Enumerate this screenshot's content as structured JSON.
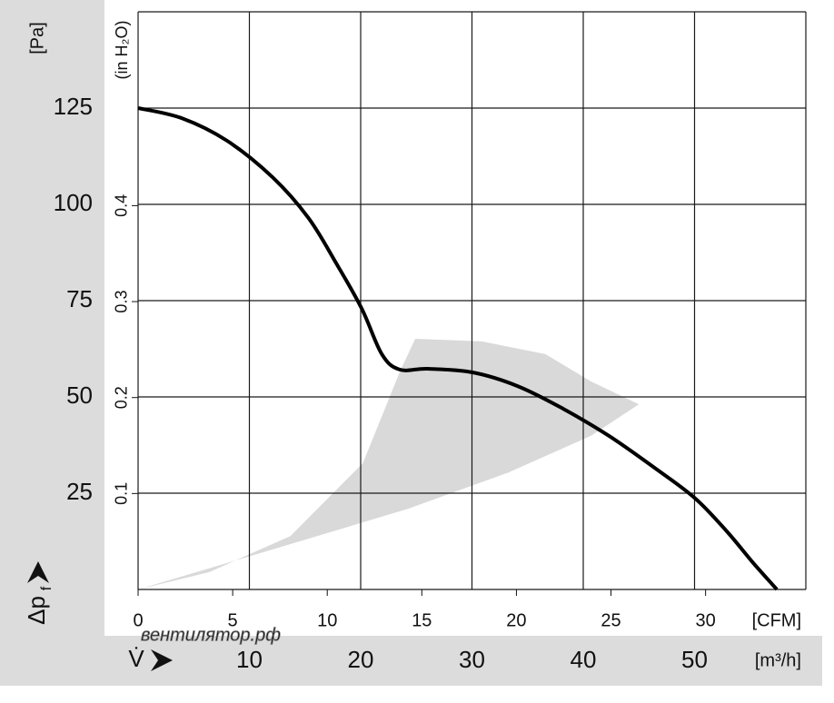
{
  "chart_data": {
    "type": "line",
    "ylabel": "Δp",
    "ylabel_sub": "f",
    "ylabel_unit": "[Pa]",
    "y2label": "(in H₂O)",
    "xlabel": "V̇",
    "xlabel_unit": "[m³/h]",
    "x2label_unit": "[CFM]",
    "watermark": "вентилятор.рф",
    "xlim": [
      0,
      60
    ],
    "xticks": [
      10,
      20,
      30,
      40,
      50
    ],
    "x2lim": [
      0,
      35.3
    ],
    "x2ticks": [
      0,
      5,
      10,
      15,
      20,
      25,
      30
    ],
    "ylim": [
      0,
      150
    ],
    "yticks": [
      25,
      50,
      75,
      100,
      125
    ],
    "y2lim": [
      0,
      0.602
    ],
    "y2ticks": [
      0.1,
      0.2,
      0.3,
      0.4
    ],
    "grid": true,
    "series": [
      {
        "color": "#000000",
        "x": [
          0,
          3.9,
          8,
          12.1,
          15.3,
          17.8,
          20.1,
          21.9,
          23.5,
          26,
          30,
          34.1,
          38.2,
          42.3,
          46.4,
          50,
          52.9,
          55.3,
          57.4
        ],
        "values": [
          125,
          122.4,
          116.5,
          107,
          96.5,
          84.7,
          72.9,
          61.1,
          57.1,
          57.3,
          56.4,
          52.8,
          46.9,
          39.9,
          31.6,
          23.8,
          15.1,
          6.8,
          0
        ]
      }
    ],
    "band": {
      "color": "#d9d9d9",
      "x": [
        0,
        12.1,
        24.3,
        33.3,
        40.7,
        45,
        40.7,
        36.6,
        30.9,
        24.9,
        23.5,
        20.2,
        13.7,
        6.4
      ],
      "values": [
        0,
        10.4,
        21,
        30.4,
        39.9,
        48.1,
        54,
        61.1,
        64.4,
        65.1,
        56.4,
        32.8,
        13.9,
        4.5
      ]
    }
  }
}
